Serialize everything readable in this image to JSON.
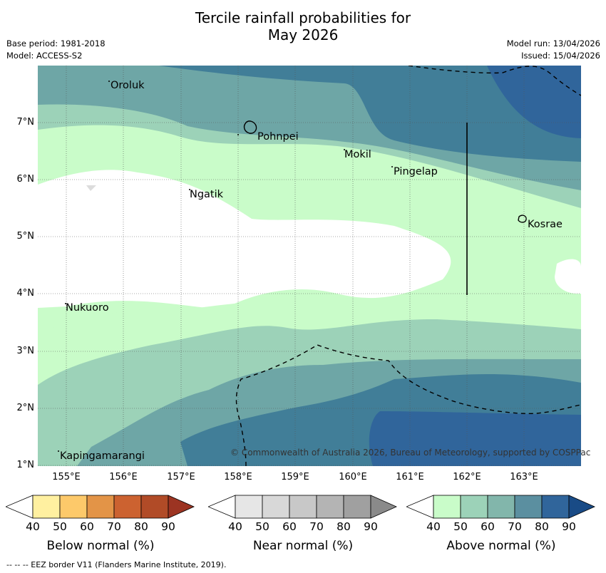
{
  "title": {
    "line1": "Tercile rainfall probabilities for",
    "line2": "May 2026"
  },
  "meta": {
    "base_period": "Base period: 1981-2018",
    "model": "Model: ACCESS-S2",
    "model_run": "Model run: 13/04/2026",
    "issued": "Issued: 15/04/2026"
  },
  "map": {
    "lat_labels": [
      "7°N",
      "6°N",
      "5°N",
      "4°N",
      "3°N",
      "2°N",
      "1°N"
    ],
    "lon_labels": [
      "155°E",
      "156°E",
      "157°E",
      "158°E",
      "159°E",
      "160°E",
      "161°E",
      "162°E",
      "163°E"
    ],
    "places": [
      "Oroluk",
      "Pohnpei",
      "Mokil",
      "Pingelap",
      "Ngatik",
      "Kosrae",
      "Nukuoro",
      "Kapingamarangi"
    ],
    "copyright": "© Commonwealth of Australia 2026, Bureau of Meteorology, supported by COSPPac",
    "colors": {
      "above_50": "#c9fcc9",
      "above_60": "#9cd2b8",
      "above_70": "#6ea6a6",
      "above_80": "#417e98",
      "above_90": "#30659b"
    }
  },
  "legends": {
    "below": {
      "title": "Below normal (%)",
      "ticks": [
        "40",
        "50",
        "60",
        "70",
        "80",
        "90"
      ],
      "colors": [
        "#fff0a0",
        "#fdc96a",
        "#e39447",
        "#cc6230",
        "#b14b27",
        "#9c3422"
      ]
    },
    "near": {
      "title": "Near normal (%)",
      "ticks": [
        "40",
        "50",
        "60",
        "70",
        "80",
        "90"
      ],
      "colors": [
        "#e6e6e6",
        "#d8d8d8",
        "#c8c8c8",
        "#b4b4b4",
        "#a0a0a0",
        "#8a8a8a"
      ]
    },
    "above": {
      "title": "Above normal (%)",
      "ticks": [
        "40",
        "50",
        "60",
        "70",
        "80",
        "90"
      ],
      "colors": [
        "#c9fcc9",
        "#9cd2b8",
        "#82b6ab",
        "#5b8fa0",
        "#30659b",
        "#194b86"
      ]
    }
  },
  "footer": "--  --  -- EEZ border V11 (Flanders Marine Institute, 2019)."
}
